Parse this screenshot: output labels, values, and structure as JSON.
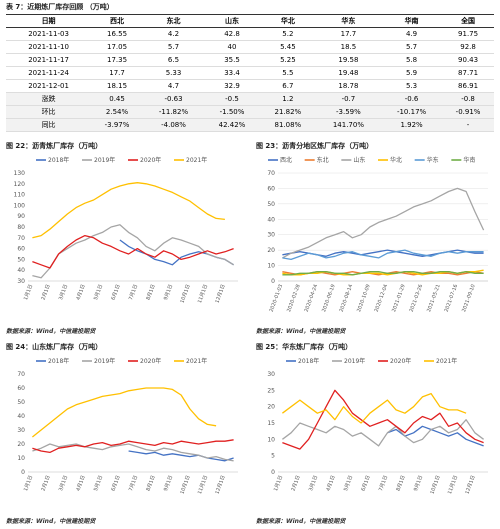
{
  "table": {
    "title": "表 7：近期炼厂库存回顾 （万吨）",
    "header": [
      "日期",
      "西北",
      "东北",
      "山东",
      "华北",
      "华东",
      "华南",
      "全国"
    ],
    "rows": [
      [
        "2021-11-03",
        "16.55",
        "4.2",
        "42.8",
        "5.2",
        "17.7",
        "4.9",
        "91.75"
      ],
      [
        "2021-11-10",
        "17.05",
        "5.7",
        "40",
        "5.45",
        "18.5",
        "5.7",
        "92.8"
      ],
      [
        "2021-11-17",
        "17.35",
        "6.5",
        "35.5",
        "5.25",
        "19.58",
        "5.8",
        "90.43"
      ],
      [
        "2021-11-24",
        "17.7",
        "5.33",
        "33.4",
        "5.5",
        "19.48",
        "5.9",
        "87.71"
      ],
      [
        "2021-12-01",
        "18.15",
        "4.7",
        "32.9",
        "6.7",
        "18.78",
        "5.3",
        "86.91"
      ],
      [
        "涨跌",
        "0.45",
        "-0.63",
        "-0.5",
        "1.2",
        "-0.7",
        "-0.6",
        "-0.8"
      ],
      [
        "环比",
        "2.54%",
        "-11.82%",
        "-1.50%",
        "21.82%",
        "-3.59%",
        "-10.17%",
        "-0.91%"
      ],
      [
        "同比",
        "-3.97%",
        "-4.08%",
        "42.42%",
        "81.08%",
        "141.70%",
        "1.92%",
        "-"
      ]
    ]
  },
  "chart_data": [
    {
      "type": "line",
      "title": "图 22：沥青炼厂库存（万吨）",
      "source": "数据来源：Wind，中信建投期货",
      "categories": [
        "1月1日",
        null,
        "2月1日",
        null,
        "3月1日",
        null,
        "4月1日",
        null,
        "5月1日",
        null,
        "6月1日",
        null,
        "7月1日",
        null,
        "8月1日",
        null,
        "9月1日",
        null,
        "10月1日",
        null,
        "11月1日",
        null,
        "12月1日",
        null
      ],
      "ylim": [
        30,
        130
      ],
      "yticks": [
        30,
        40,
        50,
        60,
        70,
        80,
        90,
        100,
        110,
        120,
        130
      ],
      "grid": false,
      "series": [
        {
          "name": "2018年",
          "color": "#4472c4",
          "values": [
            null,
            null,
            null,
            null,
            null,
            null,
            null,
            null,
            null,
            null,
            68,
            62,
            58,
            55,
            50,
            48,
            45,
            52,
            55,
            57,
            55,
            52,
            50,
            45
          ]
        },
        {
          "name": "2019年",
          "color": "#a5a5a5",
          "values": [
            35,
            33,
            42,
            55,
            60,
            65,
            68,
            72,
            75,
            80,
            82,
            75,
            70,
            62,
            58,
            65,
            70,
            68,
            65,
            62,
            55,
            52,
            50,
            45
          ]
        },
        {
          "name": "2020年",
          "color": "#e02020",
          "values": [
            48,
            45,
            42,
            55,
            62,
            68,
            72,
            70,
            65,
            62,
            58,
            55,
            60,
            55,
            52,
            58,
            55,
            50,
            52,
            55,
            58,
            55,
            57,
            60
          ]
        },
        {
          "name": "2021年",
          "color": "#ffc000",
          "values": [
            70,
            72,
            78,
            85,
            92,
            98,
            102,
            105,
            110,
            115,
            118,
            120,
            121,
            120,
            118,
            115,
            112,
            108,
            104,
            98,
            92,
            88,
            87,
            null
          ]
        }
      ]
    },
    {
      "type": "line",
      "title": "图 23：沥青分地区炼厂库存（万吨）",
      "source": "数据来源：Wind，中信建投期货",
      "categories": [
        "2020-01-03",
        null,
        "2020-02-28",
        null,
        "2020-04-24",
        null,
        "2020-06-19",
        null,
        "2020-08-14",
        null,
        "2020-10-09",
        null,
        "2020-12-04",
        null,
        "2021-01-29",
        null,
        "2021-03-26",
        null,
        "2021-05-21",
        null,
        "2021-07-16",
        null,
        "2021-09-10",
        null
      ],
      "ylim": [
        0,
        70
      ],
      "yticks": [
        0,
        10,
        20,
        30,
        40,
        50,
        60,
        70
      ],
      "grid": true,
      "series": [
        {
          "name": "西北",
          "color": "#4472c4",
          "values": [
            17,
            18,
            19,
            18,
            17,
            16,
            18,
            19,
            18,
            17,
            18,
            19,
            20,
            19,
            18,
            17,
            16,
            17,
            18,
            19,
            20,
            19,
            18,
            18
          ]
        },
        {
          "name": "东北",
          "color": "#ed7d31",
          "values": [
            6,
            5,
            4,
            5,
            6,
            5,
            4,
            5,
            6,
            5,
            5,
            4,
            5,
            6,
            5,
            4,
            5,
            6,
            5,
            5,
            4,
            5,
            6,
            5
          ]
        },
        {
          "name": "山东",
          "color": "#a5a5a5",
          "values": [
            15,
            18,
            20,
            22,
            25,
            28,
            30,
            32,
            28,
            30,
            35,
            38,
            40,
            42,
            45,
            48,
            50,
            52,
            55,
            58,
            60,
            58,
            45,
            33
          ]
        },
        {
          "name": "华北",
          "color": "#ffc000",
          "values": [
            5,
            4,
            4,
            5,
            5,
            6,
            5,
            4,
            4,
            5,
            5,
            5,
            4,
            5,
            6,
            5,
            4,
            5,
            5,
            6,
            5,
            6,
            6,
            7
          ]
        },
        {
          "name": "华东",
          "color": "#5b9bd5",
          "values": [
            15,
            14,
            16,
            18,
            17,
            15,
            16,
            18,
            19,
            17,
            16,
            15,
            18,
            19,
            20,
            18,
            17,
            16,
            18,
            19,
            18,
            19,
            19,
            19
          ]
        },
        {
          "name": "华南",
          "color": "#70ad47",
          "values": [
            4,
            4,
            5,
            5,
            6,
            6,
            5,
            5,
            4,
            5,
            6,
            6,
            5,
            5,
            6,
            6,
            5,
            5,
            6,
            6,
            5,
            6,
            5,
            5
          ]
        }
      ]
    },
    {
      "type": "line",
      "title": "图 24：山东炼厂库存（万吨）",
      "source": "数据来源：Wind，中信建投期货",
      "categories": [
        "1月1日",
        null,
        "2月1日",
        null,
        "3月1日",
        null,
        "4月1日",
        null,
        "5月1日",
        null,
        "6月1日",
        null,
        "7月1日",
        null,
        "8月1日",
        null,
        "9月1日",
        null,
        "10月1日",
        null,
        "11月1日",
        null,
        "12月1日",
        null
      ],
      "ylim": [
        0,
        70
      ],
      "yticks": [
        0,
        10,
        20,
        30,
        40,
        50,
        60,
        70
      ],
      "grid": false,
      "series": [
        {
          "name": "2018年",
          "color": "#4472c4",
          "values": [
            null,
            null,
            null,
            null,
            null,
            null,
            null,
            null,
            null,
            null,
            null,
            15,
            14,
            13,
            14,
            12,
            13,
            12,
            11,
            12,
            10,
            9,
            8,
            10
          ]
        },
        {
          "name": "2019年",
          "color": "#a5a5a5",
          "values": [
            15,
            17,
            20,
            18,
            19,
            20,
            18,
            17,
            16,
            18,
            19,
            20,
            18,
            16,
            15,
            17,
            16,
            14,
            13,
            12,
            10,
            11,
            9,
            8
          ]
        },
        {
          "name": "2020年",
          "color": "#e02020",
          "values": [
            17,
            15,
            14,
            17,
            18,
            19,
            18,
            20,
            21,
            19,
            20,
            22,
            21,
            20,
            19,
            21,
            20,
            22,
            21,
            20,
            21,
            22,
            22,
            23
          ]
        },
        {
          "name": "2021年",
          "color": "#ffc000",
          "values": [
            25,
            30,
            35,
            40,
            45,
            48,
            50,
            52,
            54,
            55,
            56,
            58,
            59,
            60,
            60,
            60,
            59,
            55,
            45,
            38,
            34,
            33,
            null,
            null
          ]
        }
      ]
    },
    {
      "type": "line",
      "title": "图 25：华东炼厂库存（万吨）",
      "source": "数据来源：Wind，中信建投期货",
      "categories": [
        "1月1日",
        null,
        "2月1日",
        null,
        "3月1日",
        null,
        "4月1日",
        null,
        "5月1日",
        null,
        "6月1日",
        null,
        "7月1日",
        null,
        "8月1日",
        null,
        "9月1日",
        null,
        "10月1日",
        null,
        "11月1日",
        null,
        "12月1日",
        null
      ],
      "ylim": [
        0,
        30
      ],
      "yticks": [
        0,
        5,
        10,
        15,
        20,
        25,
        30
      ],
      "grid": false,
      "series": [
        {
          "name": "2018年",
          "color": "#4472c4",
          "values": [
            null,
            null,
            null,
            null,
            null,
            null,
            null,
            null,
            null,
            null,
            null,
            null,
            12,
            13,
            11,
            12,
            14,
            13,
            12,
            11,
            12,
            10,
            9,
            8
          ]
        },
        {
          "name": "2019年",
          "color": "#a5a5a5",
          "values": [
            10,
            12,
            15,
            14,
            13,
            12,
            14,
            13,
            11,
            12,
            10,
            8,
            12,
            14,
            11,
            9,
            10,
            13,
            14,
            12,
            13,
            16,
            12,
            10
          ]
        },
        {
          "name": "2020年",
          "color": "#e02020",
          "values": [
            9,
            8,
            7,
            10,
            15,
            20,
            25,
            22,
            18,
            16,
            14,
            15,
            16,
            14,
            12,
            15,
            17,
            16,
            18,
            14,
            15,
            12,
            10,
            9
          ]
        },
        {
          "name": "2021年",
          "color": "#ffc000",
          "values": [
            18,
            20,
            22,
            20,
            18,
            19,
            16,
            20,
            17,
            15,
            18,
            20,
            22,
            19,
            18,
            20,
            23,
            24,
            20,
            19,
            19,
            18,
            null,
            null
          ]
        }
      ]
    }
  ]
}
